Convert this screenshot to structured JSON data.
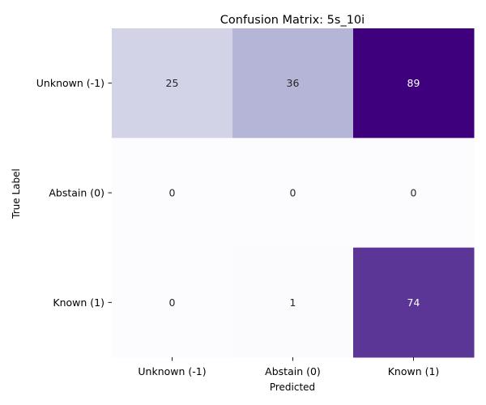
{
  "chart_data": {
    "type": "heatmap",
    "title": "Confusion Matrix: 5s_10i",
    "xlabel": "Predicted",
    "ylabel": "True Label",
    "x_categories": [
      "Unknown (-1)",
      "Abstain (0)",
      "Known (1)"
    ],
    "y_categories": [
      "Unknown (-1)",
      "Abstain (0)",
      "Known (1)"
    ],
    "values": [
      [
        25,
        36,
        89
      ],
      [
        0,
        0,
        0
      ],
      [
        0,
        1,
        74
      ]
    ],
    "colormap": "Purples",
    "vmin": 0,
    "vmax": 89,
    "colorbar": false
  }
}
